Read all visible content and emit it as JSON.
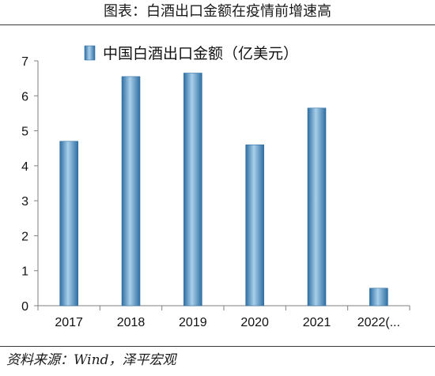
{
  "figure_title": "图表：白酒出口金额在疫情前增速高",
  "source": "资料来源：Wind，泽平宏观",
  "chart_data": {
    "type": "bar",
    "title": "",
    "xlabel": "",
    "ylabel": "",
    "categories": [
      "2017",
      "2018",
      "2019",
      "2020",
      "2021",
      "2022(..."
    ],
    "series": [
      {
        "name": "中国白酒出口金额（亿美元）",
        "values": [
          4.7,
          6.55,
          6.65,
          4.6,
          5.65,
          0.5
        ]
      }
    ],
    "ylim": [
      0,
      7
    ],
    "yticks": [
      0,
      1,
      2,
      3,
      4,
      5,
      6,
      7
    ],
    "grid": false,
    "legend_position": "top-center",
    "bar_color": "#4a90c2"
  }
}
